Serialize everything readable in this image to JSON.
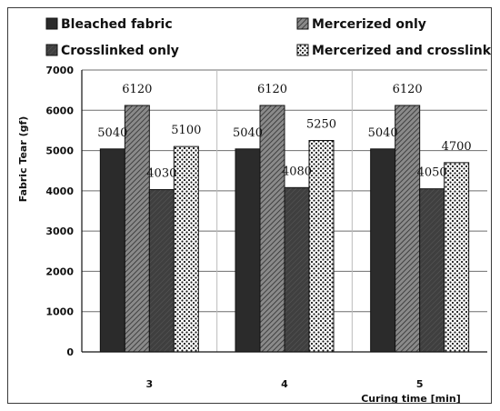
{
  "chart_data": {
    "type": "bar",
    "title": "",
    "xlabel": "Curing time [min]",
    "ylabel": "Fabric Tear (gf)",
    "ylim": [
      0,
      7000
    ],
    "yticks": [
      0,
      1000,
      2000,
      3000,
      4000,
      5000,
      6000,
      7000
    ],
    "categories": [
      "3",
      "4",
      "5"
    ],
    "grid": true,
    "legend_position": "top",
    "series": [
      {
        "name": "Bleached fabric",
        "values": [
          5040,
          5040,
          5040
        ],
        "labels": [
          "5040",
          "5040",
          "5040"
        ],
        "pattern": "solid-dark"
      },
      {
        "name": "Mercerized only",
        "values": [
          6120,
          6120,
          6120
        ],
        "labels": [
          "6120",
          "6120",
          "6120"
        ],
        "pattern": "hatched"
      },
      {
        "name": "Crosslinked only",
        "values": [
          4030,
          4080,
          4050
        ],
        "labels": [
          "4030",
          "4080",
          "4050"
        ],
        "pattern": "dark-grey"
      },
      {
        "name": "Mercerized and crosslinked",
        "values": [
          5100,
          5250,
          4700
        ],
        "labels": [
          "5100",
          "5250",
          "4700"
        ],
        "pattern": "dotted"
      }
    ]
  }
}
